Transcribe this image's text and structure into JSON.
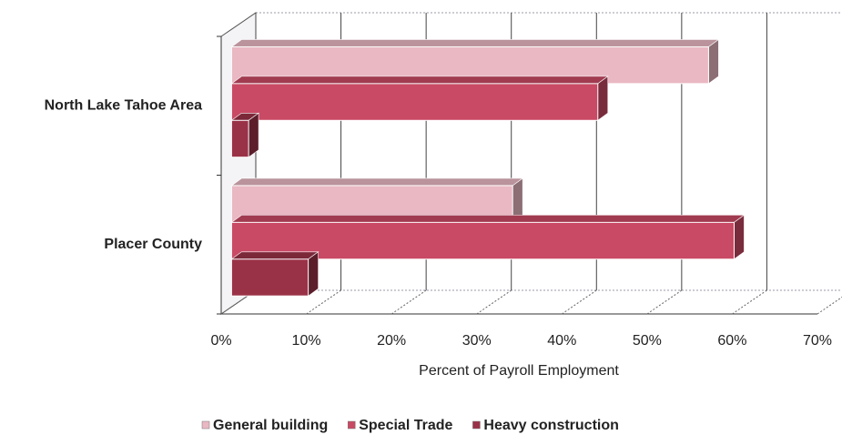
{
  "chart_data": {
    "type": "bar",
    "orientation": "horizontal",
    "xlabel": "Percent of Payroll Employment",
    "categories": [
      "North Lake Tahoe Area",
      "Placer County"
    ],
    "series": [
      {
        "name": "General building",
        "color": "#e9b8c3",
        "values": [
          56,
          33
        ]
      },
      {
        "name": "Special Trade",
        "color": "#c94a64",
        "values": [
          43,
          59
        ]
      },
      {
        "name": "Heavy construction",
        "color": "#9a3247",
        "values": [
          2,
          9
        ]
      }
    ],
    "xlim": [
      0,
      70
    ],
    "xticks": [
      {
        "value": 0,
        "label": "0%"
      },
      {
        "value": 10,
        "label": "10%"
      },
      {
        "value": 20,
        "label": "20%"
      },
      {
        "value": 30,
        "label": "30%"
      },
      {
        "value": 40,
        "label": "40%"
      },
      {
        "value": 50,
        "label": "50%"
      },
      {
        "value": 60,
        "label": "60%"
      },
      {
        "value": 70,
        "label": "70%"
      }
    ],
    "grid": true,
    "legend": "bottom"
  }
}
